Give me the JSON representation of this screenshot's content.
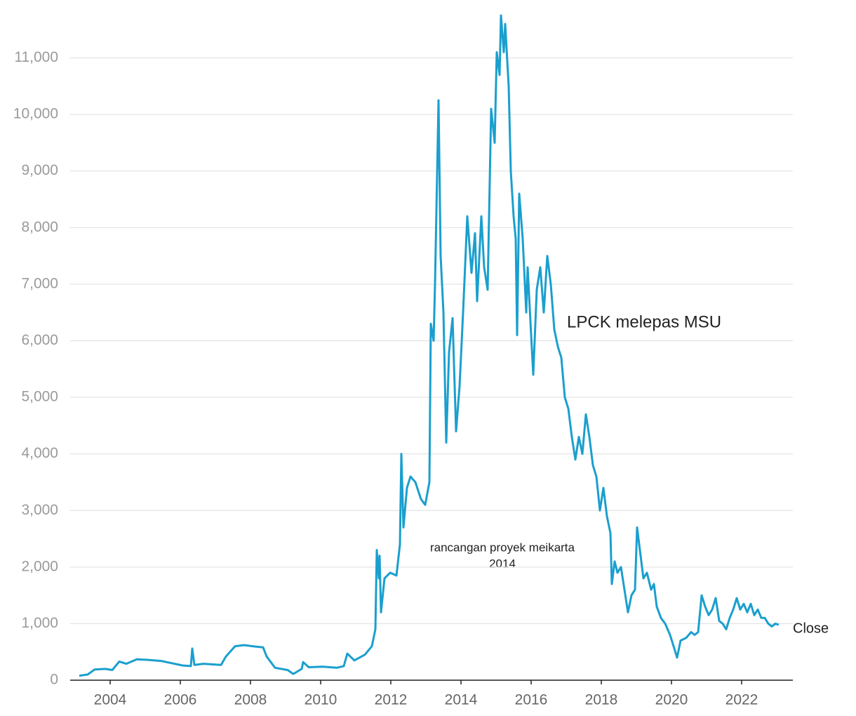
{
  "chart_data": {
    "type": "line",
    "annotations": [
      {
        "lines": [
          "LPCK melepas MSU"
        ]
      },
      {
        "lines": [
          "rancangan proyek meikarta",
          "2014"
        ]
      }
    ],
    "xlim": [
      2002.86,
      2023.46
    ],
    "xticks": [
      2004,
      2006,
      2008,
      2010,
      2012,
      2014,
      2016,
      2018,
      2020,
      2022
    ],
    "ylim": [
      0,
      11800
    ],
    "yticks": [
      0,
      {
        "value": 1000,
        "label": "1,000"
      },
      {
        "value": 2000,
        "label": "2,000"
      },
      {
        "value": 3000,
        "label": "3,000"
      },
      {
        "value": 4000,
        "label": "4,000"
      },
      {
        "value": 5000,
        "label": "5,000"
      },
      {
        "value": 6000,
        "label": "6,000"
      },
      {
        "value": 7000,
        "label": "7,000"
      },
      {
        "value": 8000,
        "label": "8,000"
      },
      {
        "value": 9000,
        "label": "9,000"
      },
      {
        "value": 10000,
        "label": "10,000"
      },
      {
        "value": 11000,
        "label": "11,000"
      }
    ],
    "grid": true,
    "x": [
      2003.12,
      2003.36,
      2003.56,
      2003.86,
      2004.06,
      2004.26,
      2004.46,
      2004.76,
      2005.06,
      2005.46,
      2005.76,
      2006.06,
      2006.3,
      2006.34,
      2006.4,
      2006.66,
      2007.16,
      2007.3,
      2007.56,
      2007.82,
      2008.06,
      2008.36,
      2008.46,
      2008.7,
      2009.06,
      2009.22,
      2009.46,
      2009.5,
      2009.66,
      2010.06,
      2010.46,
      2010.66,
      2010.76,
      2010.96,
      2011.26,
      2011.46,
      2011.56,
      2011.6,
      2011.66,
      2011.68,
      2011.72,
      2011.82,
      2011.98,
      2012.16,
      2012.26,
      2012.3,
      2012.36,
      2012.46,
      2012.56,
      2012.7,
      2012.86,
      2012.98,
      2013.1,
      2013.14,
      2013.22,
      2013.26,
      2013.36,
      2013.42,
      2013.5,
      2013.58,
      2013.66,
      2013.76,
      2013.86,
      2013.96,
      2014.06,
      2014.18,
      2014.3,
      2014.4,
      2014.46,
      2014.58,
      2014.66,
      2014.76,
      2014.86,
      2014.96,
      2015.02,
      2015.1,
      2015.14,
      2015.22,
      2015.26,
      2015.36,
      2015.42,
      2015.5,
      2015.56,
      2015.6,
      2015.66,
      2015.76,
      2015.86,
      2015.9,
      2016.0,
      2016.06,
      2016.16,
      2016.26,
      2016.36,
      2016.46,
      2016.56,
      2016.66,
      2016.76,
      2016.86,
      2016.96,
      2017.06,
      2017.16,
      2017.26,
      2017.36,
      2017.46,
      2017.56,
      2017.66,
      2017.76,
      2017.86,
      2017.96,
      2018.06,
      2018.16,
      2018.26,
      2018.3,
      2018.38,
      2018.46,
      2018.56,
      2018.66,
      2018.76,
      2018.86,
      2018.96,
      2019.02,
      2019.12,
      2019.2,
      2019.3,
      2019.42,
      2019.5,
      2019.58,
      2019.7,
      2019.82,
      2019.96,
      2020.06,
      2020.16,
      2020.26,
      2020.42,
      2020.56,
      2020.66,
      2020.76,
      2020.86,
      2020.96,
      2021.06,
      2021.16,
      2021.26,
      2021.36,
      2021.46,
      2021.56,
      2021.66,
      2021.76,
      2021.86,
      2021.96,
      2022.06,
      2022.16,
      2022.26,
      2022.36,
      2022.46,
      2022.56,
      2022.66,
      2022.76,
      2022.86,
      2022.96,
      2023.06
    ],
    "series": [
      {
        "name": "Close",
        "color": "#1a9fce",
        "values": [
          80,
          100,
          190,
          200,
          180,
          330,
          290,
          370,
          360,
          340,
          300,
          260,
          250,
          560,
          270,
          290,
          270,
          420,
          600,
          620,
          600,
          580,
          420,
          220,
          180,
          110,
          200,
          320,
          230,
          240,
          220,
          250,
          470,
          350,
          450,
          600,
          900,
          2300,
          1800,
          2200,
          1200,
          1800,
          1900,
          1850,
          2400,
          4000,
          2700,
          3400,
          3600,
          3500,
          3200,
          3100,
          3500,
          6300,
          6000,
          7000,
          10250,
          7500,
          6500,
          4200,
          5800,
          6400,
          4400,
          5200,
          6500,
          8200,
          7200,
          7900,
          6700,
          8200,
          7300,
          6900,
          10100,
          9500,
          11100,
          10700,
          11750,
          11100,
          11600,
          10500,
          9000,
          8200,
          7800,
          6100,
          8600,
          7800,
          6500,
          7300,
          6100,
          5400,
          6900,
          7300,
          6500,
          7500,
          7000,
          6200,
          5900,
          5700,
          5000,
          4800,
          4300,
          3900,
          4300,
          4000,
          4700,
          4300,
          3800,
          3600,
          3000,
          3400,
          2900,
          2600,
          1700,
          2100,
          1900,
          2000,
          1600,
          1200,
          1500,
          1600,
          2700,
          2200,
          1800,
          1900,
          1600,
          1700,
          1300,
          1100,
          1000,
          800,
          600,
          400,
          700,
          750,
          850,
          800,
          850,
          1500,
          1300,
          1150,
          1250,
          1450,
          1050,
          1000,
          900,
          1100,
          1250,
          1450,
          1250,
          1350,
          1200,
          1350,
          1150,
          1250,
          1100,
          1100,
          1000,
          950,
          1000,
          980
        ]
      }
    ]
  }
}
